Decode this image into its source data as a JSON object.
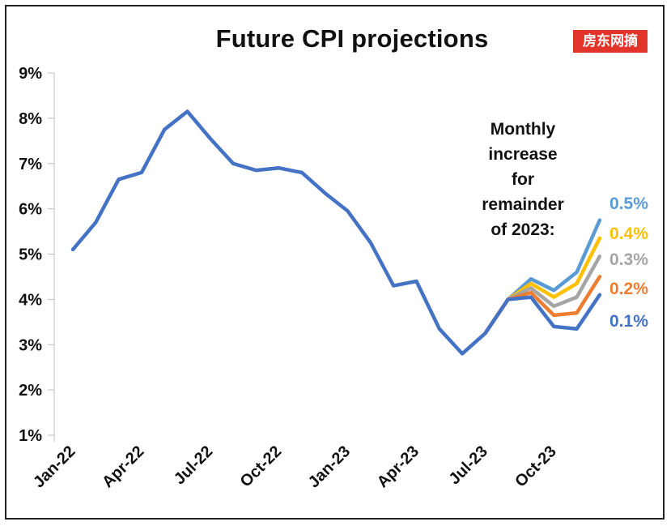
{
  "stamp_text": "房东网摘",
  "chart_data": {
    "type": "line",
    "title": "Future CPI projections",
    "xlabel": "",
    "ylabel": "",
    "ylim": [
      1,
      9
    ],
    "y_ticks": [
      "1%",
      "2%",
      "3%",
      "4%",
      "5%",
      "6%",
      "7%",
      "8%",
      "9%"
    ],
    "x_tick_labels": [
      "Jan-22",
      "Apr-22",
      "Jul-22",
      "Oct-22",
      "Jan-23",
      "Apr-23",
      "Jul-23",
      "Oct-23"
    ],
    "grid": false,
    "months": [
      "Jan-22",
      "Feb-22",
      "Mar-22",
      "Apr-22",
      "May-22",
      "Jun-22",
      "Jul-22",
      "Aug-22",
      "Sep-22",
      "Oct-22",
      "Nov-22",
      "Dec-22",
      "Jan-23",
      "Feb-23",
      "Mar-23",
      "Apr-23",
      "May-23",
      "Jun-23",
      "Jul-23",
      "Aug-23",
      "Sep-23",
      "Oct-23",
      "Nov-23",
      "Dec-23"
    ],
    "history": {
      "color": "#4472c4",
      "values": [
        5.1,
        5.7,
        6.65,
        6.8,
        7.75,
        8.15,
        7.55,
        7.0,
        6.85,
        6.9,
        6.8,
        6.35,
        5.95,
        5.25,
        4.3,
        4.4,
        3.35,
        2.8,
        3.25
      ]
    },
    "annotation": {
      "lines": [
        "Monthly",
        "increase",
        "for",
        "remainder",
        "of 2023:"
      ]
    },
    "series": [
      {
        "name": "0.5%",
        "color": "#5b9bd5",
        "values": [
          3.25,
          4.0,
          4.45,
          4.2,
          4.6,
          5.75
        ]
      },
      {
        "name": "0.4%",
        "color": "#ffc000",
        "values": [
          3.25,
          4.0,
          4.35,
          4.05,
          4.35,
          5.35
        ]
      },
      {
        "name": "0.3%",
        "color": "#a5a5a5",
        "values": [
          3.25,
          4.0,
          4.25,
          3.85,
          4.05,
          4.95
        ]
      },
      {
        "name": "0.2%",
        "color": "#ed7d31",
        "values": [
          3.25,
          4.0,
          4.15,
          3.65,
          3.7,
          4.5
        ]
      },
      {
        "name": "0.1%",
        "color": "#4472c4",
        "values": [
          3.25,
          4.0,
          4.05,
          3.4,
          3.35,
          4.1
        ]
      }
    ]
  }
}
